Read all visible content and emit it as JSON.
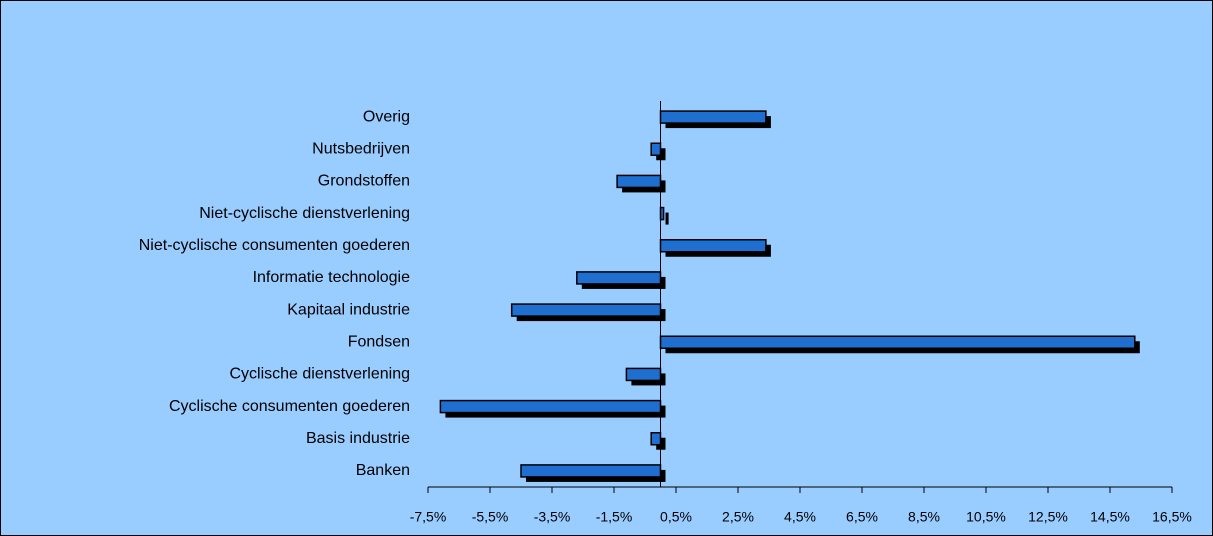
{
  "chart_data": {
    "type": "bar",
    "orientation": "horizontal",
    "categories": [
      "Banken",
      "Basis industrie",
      "Cyclische consumenten goederen",
      "Cyclische dienstverlening",
      "Fondsen",
      "Kapitaal industrie",
      "Informatie technologie",
      "Niet-cyclische consumenten goederen",
      "Niet-cyclische dienstverlening",
      "Grondstoffen",
      "Nutsbedrijven",
      "Overig"
    ],
    "values": [
      -4.5,
      -0.3,
      -7.1,
      -1.1,
      15.3,
      -4.8,
      -2.7,
      3.4,
      0.1,
      -1.4,
      -0.3,
      3.4
    ],
    "color": "#1f6fd0",
    "shadow_color": "#000000",
    "background": "#99ccff",
    "xlim": [
      -7.5,
      16.5
    ],
    "xticks": [
      {
        "value": -7.5,
        "label": "-7,5%"
      },
      {
        "value": -5.5,
        "label": "-5,5%"
      },
      {
        "value": -3.5,
        "label": "-3,5%"
      },
      {
        "value": -1.5,
        "label": "-1,5%"
      },
      {
        "value": 0.5,
        "label": "0,5%"
      },
      {
        "value": 2.5,
        "label": "2,5%"
      },
      {
        "value": 4.5,
        "label": "4,5%"
      },
      {
        "value": 6.5,
        "label": "6,5%"
      },
      {
        "value": 8.5,
        "label": "8,5%"
      },
      {
        "value": 10.5,
        "label": "10,5%"
      },
      {
        "value": 12.5,
        "label": "12,5%"
      },
      {
        "value": 14.5,
        "label": "14,5%"
      },
      {
        "value": 16.5,
        "label": "16,5%"
      }
    ],
    "grid": false
  }
}
